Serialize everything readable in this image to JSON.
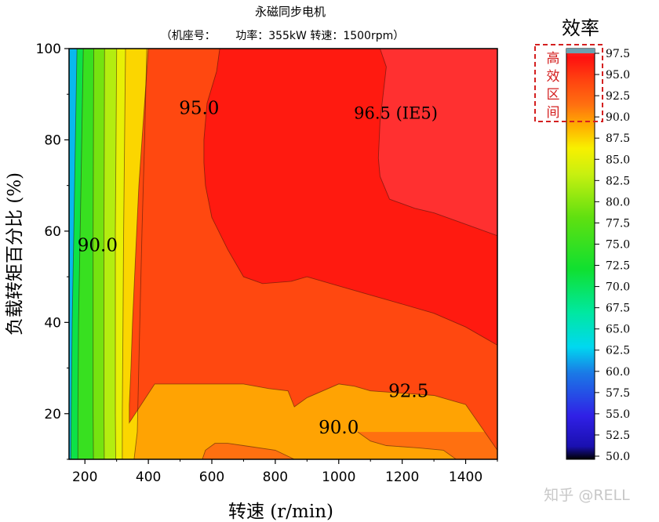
{
  "chart_data": {
    "type": "heatmap",
    "subtype": "filled-contour",
    "title": "永磁同步电机",
    "subtitle": "（机座号：　　 功率：355kW 转速：1500rpm）",
    "xlabel": "转速 (r/min)",
    "ylabel": "负载转矩百分比 (%)",
    "xlim": [
      150,
      1500
    ],
    "ylim": [
      10,
      100
    ],
    "x_ticks": [
      200,
      400,
      600,
      800,
      1000,
      1200,
      1400
    ],
    "y_ticks": [
      20,
      40,
      60,
      80,
      100
    ],
    "grid": false,
    "colorbar": {
      "title": "效率",
      "min": 50.0,
      "max": 97.5,
      "ticks": [
        "97.5",
        "95.0",
        "92.5",
        "90.0",
        "87.5",
        "85.0",
        "82.5",
        "80.0",
        "77.5",
        "75.0",
        "72.5",
        "70.0",
        "67.5",
        "65.0",
        "62.5",
        "60.0",
        "57.5",
        "55.0",
        "52.5",
        "50.0"
      ],
      "colors": [
        {
          "value": 50.0,
          "color": "#000000"
        },
        {
          "value": 51.5,
          "color": "#1a10b0"
        },
        {
          "value": 55.0,
          "color": "#3020e6"
        },
        {
          "value": 60.0,
          "color": "#1a7ae6"
        },
        {
          "value": 63.0,
          "color": "#00d8f0"
        },
        {
          "value": 67.0,
          "color": "#00e8a0"
        },
        {
          "value": 72.0,
          "color": "#10e030"
        },
        {
          "value": 78.0,
          "color": "#60e010"
        },
        {
          "value": 83.0,
          "color": "#c8f010"
        },
        {
          "value": 86.0,
          "color": "#f8f000"
        },
        {
          "value": 88.5,
          "color": "#ffb000"
        },
        {
          "value": 91.0,
          "color": "#ff7010"
        },
        {
          "value": 94.0,
          "color": "#ff4010"
        },
        {
          "value": 96.5,
          "color": "#ff1010"
        },
        {
          "value": 97.5,
          "color": "#ff3030"
        }
      ],
      "top_band_color": "#6aa0b0",
      "annotation": "高效区间"
    },
    "contour_labels": [
      {
        "text": "95.0",
        "x": 560,
        "y": 87
      },
      {
        "text": "96.5 (IE5)",
        "x": 1180,
        "y": 86
      },
      {
        "text": "90.0",
        "x": 240,
        "y": 57
      },
      {
        "text": "92.5",
        "x": 1220,
        "y": 25
      },
      {
        "text": "90.0",
        "x": 1000,
        "y": 17
      }
    ],
    "contours": [
      {
        "level": 96.5,
        "points": [
          [
            1130,
            100
          ],
          [
            1150,
            96
          ],
          [
            1140,
            90
          ],
          [
            1130,
            84
          ],
          [
            1125,
            76
          ],
          [
            1130,
            72
          ],
          [
            1160,
            67
          ],
          [
            1240,
            65
          ],
          [
            1300,
            64
          ],
          [
            1380,
            62
          ],
          [
            1500,
            59
          ]
        ]
      },
      {
        "level": 95.0,
        "points": [
          [
            625,
            100
          ],
          [
            615,
            95
          ],
          [
            585,
            88
          ],
          [
            575,
            80
          ],
          [
            575,
            75
          ],
          [
            580,
            70
          ],
          [
            600,
            63
          ],
          [
            650,
            56
          ],
          [
            700,
            50
          ],
          [
            760,
            48.5
          ],
          [
            850,
            49
          ],
          [
            900,
            50
          ],
          [
            1000,
            48
          ],
          [
            1100,
            46
          ],
          [
            1200,
            44
          ],
          [
            1300,
            42
          ],
          [
            1400,
            39
          ],
          [
            1500,
            35
          ]
        ]
      },
      {
        "level": 92.5,
        "points": [
          [
            400,
            100
          ],
          [
            390,
            90
          ],
          [
            380,
            80
          ],
          [
            370,
            70
          ],
          [
            360,
            55
          ],
          [
            350,
            40
          ],
          [
            345,
            30
          ],
          [
            340,
            22
          ],
          [
            340,
            18
          ],
          [
            420,
            26.5
          ],
          [
            500,
            26.5
          ],
          [
            600,
            26.5
          ],
          [
            700,
            26.5
          ],
          [
            780,
            25.5
          ],
          [
            840,
            25
          ],
          [
            860,
            21.5
          ],
          [
            900,
            23.5
          ],
          [
            1000,
            26.5
          ],
          [
            1050,
            26
          ],
          [
            1100,
            25
          ],
          [
            1200,
            24.5
          ],
          [
            1300,
            24
          ],
          [
            1400,
            22
          ],
          [
            1450,
            17
          ],
          [
            1500,
            12
          ]
        ]
      },
      {
        "level": 90.0,
        "points": [
          [
            570,
            10
          ],
          [
            580,
            12
          ],
          [
            610,
            13.5
          ],
          [
            650,
            13.5
          ],
          [
            700,
            13
          ],
          [
            800,
            12
          ],
          [
            860,
            10
          ]
        ]
      },
      {
        "level": 90.0,
        "points": [
          [
            1060,
            16
          ],
          [
            1100,
            14
          ],
          [
            1150,
            13
          ],
          [
            1250,
            12.5
          ],
          [
            1330,
            12
          ],
          [
            1370,
            10
          ]
        ]
      },
      {
        "level": 88.0,
        "points": [
          [
            395,
            100
          ],
          [
            388,
            80
          ],
          [
            380,
            60
          ],
          [
            373,
            40
          ],
          [
            368,
            25
          ],
          [
            365,
            16
          ],
          [
            355,
            10
          ]
        ]
      },
      {
        "level": 86.0,
        "points": [
          [
            328,
            100
          ],
          [
            325,
            80
          ],
          [
            322,
            60
          ],
          [
            320,
            40
          ],
          [
            318,
            20
          ],
          [
            318,
            10
          ]
        ]
      },
      {
        "level": 84.0,
        "points": [
          [
            300,
            100
          ],
          [
            298,
            80
          ],
          [
            296,
            60
          ],
          [
            296,
            40
          ],
          [
            296,
            20
          ],
          [
            297,
            10
          ]
        ]
      },
      {
        "level": 81.0,
        "points": [
          [
            262,
            100
          ],
          [
            261,
            80
          ],
          [
            260,
            60
          ],
          [
            260,
            40
          ],
          [
            260,
            20
          ],
          [
            261,
            10
          ]
        ]
      },
      {
        "level": 78.0,
        "points": [
          [
            228,
            100
          ],
          [
            227,
            80
          ],
          [
            226,
            60
          ],
          [
            226,
            40
          ],
          [
            226,
            20
          ],
          [
            227,
            10
          ]
        ]
      },
      {
        "level": 74.0,
        "points": [
          [
            195,
            100
          ],
          [
            190,
            80
          ],
          [
            185,
            60
          ],
          [
            180,
            40
          ],
          [
            178,
            20
          ],
          [
            178,
            10
          ]
        ]
      },
      {
        "level": 70.0,
        "points": [
          [
            175,
            100
          ],
          [
            170,
            80
          ],
          [
            165,
            60
          ],
          [
            160,
            40
          ],
          [
            157,
            20
          ],
          [
            156,
            10
          ]
        ]
      }
    ]
  },
  "watermark": "知乎 @RELL"
}
